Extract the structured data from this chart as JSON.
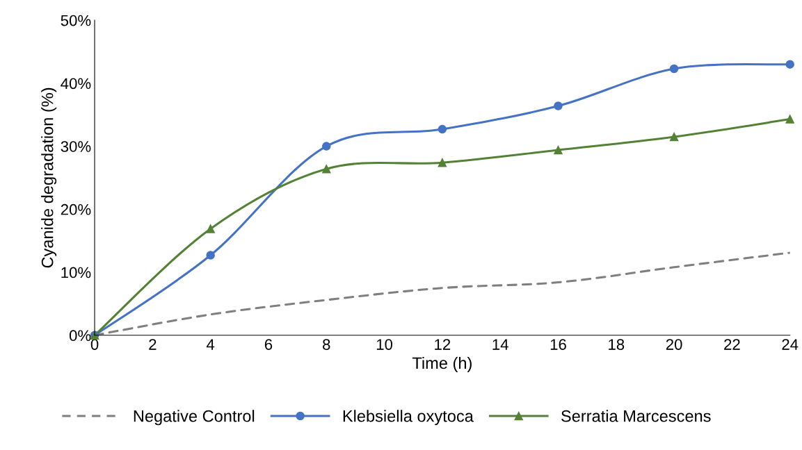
{
  "chart_data": {
    "type": "line",
    "xlabel": "Time (h)",
    "ylabel": "Cyanide degradation (%)",
    "x": [
      0,
      4,
      8,
      12,
      16,
      20,
      24
    ],
    "series": [
      {
        "name": "Negative Control",
        "color": "#7f7f7f",
        "line_style": "dashed",
        "marker": "none",
        "values": [
          0,
          3.3,
          5.6,
          7.5,
          8.4,
          10.8,
          13.1
        ]
      },
      {
        "name": "Klebsiella oxytoca",
        "color": "#4472c4",
        "line_style": "solid",
        "marker": "circle",
        "values": [
          0,
          12.7,
          30.0,
          32.7,
          36.4,
          42.3,
          43.0
        ]
      },
      {
        "name": "Serratia Marcescens",
        "color": "#548235",
        "line_style": "solid",
        "marker": "triangle",
        "values": [
          0,
          16.9,
          26.4,
          27.4,
          29.4,
          31.5,
          34.3
        ]
      }
    ],
    "xlim": [
      0,
      24
    ],
    "xticks": [
      0,
      2,
      4,
      6,
      8,
      10,
      12,
      14,
      16,
      18,
      20,
      22,
      24
    ],
    "ylim": [
      0,
      50
    ],
    "yticks": [
      {
        "value": 0,
        "label": "0%"
      },
      {
        "value": 10,
        "label": "10%"
      },
      {
        "value": 20,
        "label": "20%"
      },
      {
        "value": 30,
        "label": "30%"
      },
      {
        "value": 40,
        "label": "40%"
      },
      {
        "value": 50,
        "label": "50%"
      }
    ],
    "grid": false,
    "legend": "bottom"
  }
}
